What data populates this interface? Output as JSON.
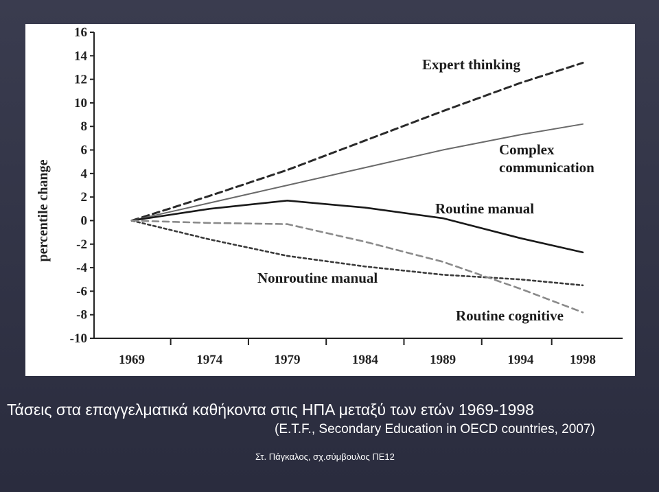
{
  "caption": {
    "main": "Τάσεις στα επαγγελματικά καθήκοντα στις ΗΠΑ μεταξύ των ετών 1969-1998",
    "source": "(E.T.F., Secondary Education in OECD countries, 2007)"
  },
  "footer": "Στ. Πάγκαλος, σχ.σύμβουλος ΠΕ12",
  "chart_data": {
    "type": "line",
    "ylabel": "percentile change",
    "xlabel": "",
    "categories": [
      "1969",
      "1974",
      "1979",
      "1984",
      "1989",
      "1994",
      "1998"
    ],
    "y_ticks": [
      16,
      14,
      12,
      10,
      8,
      6,
      4,
      2,
      0,
      -2,
      -4,
      -6,
      -8,
      -10
    ],
    "ylim": [
      -10,
      16
    ],
    "grid": false,
    "series": [
      {
        "name": "Expert thinking",
        "style": "dashed",
        "color": "#2a2a2a",
        "x": [
          1969,
          1974,
          1979,
          1984,
          1989,
          1994,
          1998
        ],
        "y": [
          0,
          2.1,
          4.3,
          6.8,
          9.3,
          11.7,
          13.4
        ]
      },
      {
        "name": "Complex communication",
        "style": "solid-thin",
        "color": "#6a6a6a",
        "x": [
          1969,
          1974,
          1979,
          1984,
          1989,
          1994,
          1998
        ],
        "y": [
          0,
          1.5,
          3.0,
          4.5,
          6.0,
          7.3,
          8.2
        ]
      },
      {
        "name": "Routine manual",
        "style": "solid",
        "color": "#1a1a1a",
        "x": [
          1969,
          1974,
          1979,
          1984,
          1989,
          1994,
          1998
        ],
        "y": [
          0,
          1.0,
          1.7,
          1.1,
          0.2,
          -1.5,
          -2.7
        ]
      },
      {
        "name": "Nonroutine manual",
        "style": "dotted",
        "color": "#3a3a3a",
        "x": [
          1969,
          1974,
          1979,
          1984,
          1989,
          1994,
          1998
        ],
        "y": [
          0,
          -1.6,
          -3.0,
          -3.9,
          -4.6,
          -5.0,
          -5.5
        ]
      },
      {
        "name": "Routine cognitive",
        "style": "dashed-light",
        "color": "#8a8a8a",
        "x": [
          1969,
          1974,
          1979,
          1984,
          1989,
          1994,
          1998
        ],
        "y": [
          0,
          -0.2,
          -0.3,
          -1.8,
          -3.5,
          -5.8,
          -7.8
        ]
      }
    ]
  }
}
